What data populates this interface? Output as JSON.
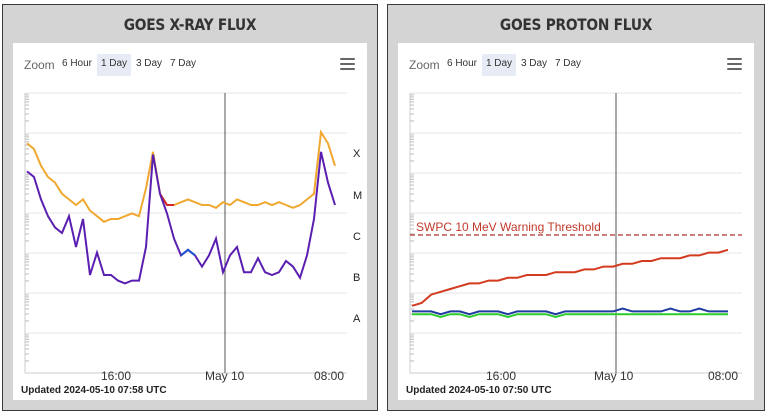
{
  "xray_panel": {
    "title": "GOES X-RAY FLUX",
    "zoom_label": "Zoom",
    "zoom_options": [
      "6 Hour",
      "1 Day",
      "3 Day",
      "7 Day"
    ],
    "active_zoom": "1 Day",
    "menu_icon": "hamburger-menu-icon",
    "class_labels": [
      "X",
      "M",
      "C",
      "B",
      "A"
    ],
    "x_ticks": [
      "16:00",
      "May 10",
      "08:00"
    ],
    "updated": "Updated 2024-05-10 07:58 UTC",
    "colors": {
      "long_channel": "#f0a830",
      "short_channel": "#5a1fb0",
      "flare_red": "#d0262a",
      "flare_blue": "#2056d0"
    }
  },
  "proton_panel": {
    "title": "GOES PROTON FLUX",
    "zoom_label": "Zoom",
    "zoom_options": [
      "6 Hour",
      "1 Day",
      "3 Day",
      "7 Day"
    ],
    "active_zoom": "1 Day",
    "menu_icon": "hamburger-menu-icon",
    "threshold_label": "SWPC 10 MeV Warning Threshold",
    "x_ticks": [
      "16:00",
      "May 10",
      "08:00"
    ],
    "updated": "Updated 2024-05-10 07:50 UTC",
    "colors": {
      "high_energy": "#d33a1e",
      "mid_energy": "#1f3aa0",
      "low_energy": "#2bcc2b",
      "threshold": "#b03030"
    }
  },
  "chart_data": [
    {
      "type": "line",
      "title": "GOES X-RAY FLUX",
      "y_scale": "log",
      "y_class_labels": [
        "X",
        "M",
        "C",
        "B",
        "A"
      ],
      "x_ticks": [
        "16:00",
        "May 10",
        "08:00"
      ],
      "series": [
        {
          "values": [
            0.82,
            0.8,
            0.74,
            0.7,
            0.68,
            0.64,
            0.62,
            0.6,
            0.62,
            0.58,
            0.56,
            0.54,
            0.55,
            0.55,
            0.56,
            0.57,
            0.56,
            0.66,
            0.79,
            0.64,
            0.6,
            0.6,
            0.61,
            0.62,
            0.61,
            0.6,
            0.6,
            0.59,
            0.61,
            0.6,
            0.62,
            0.61,
            0.6,
            0.6,
            0.61,
            0.6,
            0.61,
            0.6,
            0.59,
            0.6,
            0.62,
            0.64,
            0.86,
            0.82,
            0.74
          ]
        },
        {
          "values": [
            0.72,
            0.7,
            0.62,
            0.56,
            0.52,
            0.5,
            0.56,
            0.45,
            0.55,
            0.35,
            0.43,
            0.35,
            0.35,
            0.33,
            0.32,
            0.33,
            0.33,
            0.45,
            0.78,
            0.64,
            0.57,
            0.48,
            0.42,
            0.44,
            0.42,
            0.38,
            0.42,
            0.48,
            0.36,
            0.42,
            0.45,
            0.36,
            0.36,
            0.41,
            0.36,
            0.35,
            0.36,
            0.4,
            0.38,
            0.34,
            0.42,
            0.55,
            0.79,
            0.68,
            0.6
          ]
        }
      ]
    },
    {
      "type": "line",
      "title": "GOES PROTON FLUX",
      "y_scale": "log",
      "x_ticks": [
        "16:00",
        "May 10",
        "08:00"
      ],
      "threshold": {
        "label": "SWPC 10 MeV Warning Threshold"
      },
      "series": [
        {
          "values": [
            0.24,
            0.25,
            0.28,
            0.29,
            0.3,
            0.31,
            0.32,
            0.32,
            0.33,
            0.33,
            0.34,
            0.34,
            0.35,
            0.35,
            0.35,
            0.36,
            0.36,
            0.36,
            0.37,
            0.37,
            0.38,
            0.38,
            0.39,
            0.39,
            0.4,
            0.4,
            0.41,
            0.41,
            0.41,
            0.42,
            0.42,
            0.43,
            0.43,
            0.44
          ]
        },
        {
          "values": [
            0.22,
            0.22,
            0.22,
            0.21,
            0.22,
            0.22,
            0.21,
            0.22,
            0.22,
            0.22,
            0.21,
            0.22,
            0.22,
            0.22,
            0.22,
            0.21,
            0.22,
            0.22,
            0.22,
            0.22,
            0.22,
            0.22,
            0.23,
            0.22,
            0.22,
            0.22,
            0.22,
            0.23,
            0.22,
            0.22,
            0.23,
            0.22,
            0.22,
            0.22
          ]
        },
        {
          "values": [
            0.21,
            0.21,
            0.21,
            0.2,
            0.21,
            0.21,
            0.2,
            0.21,
            0.21,
            0.21,
            0.2,
            0.21,
            0.21,
            0.21,
            0.21,
            0.2,
            0.21,
            0.21,
            0.21,
            0.21,
            0.21,
            0.21,
            0.21,
            0.21,
            0.21,
            0.21,
            0.21,
            0.21,
            0.21,
            0.21,
            0.21,
            0.21,
            0.21,
            0.21
          ]
        }
      ]
    }
  ]
}
